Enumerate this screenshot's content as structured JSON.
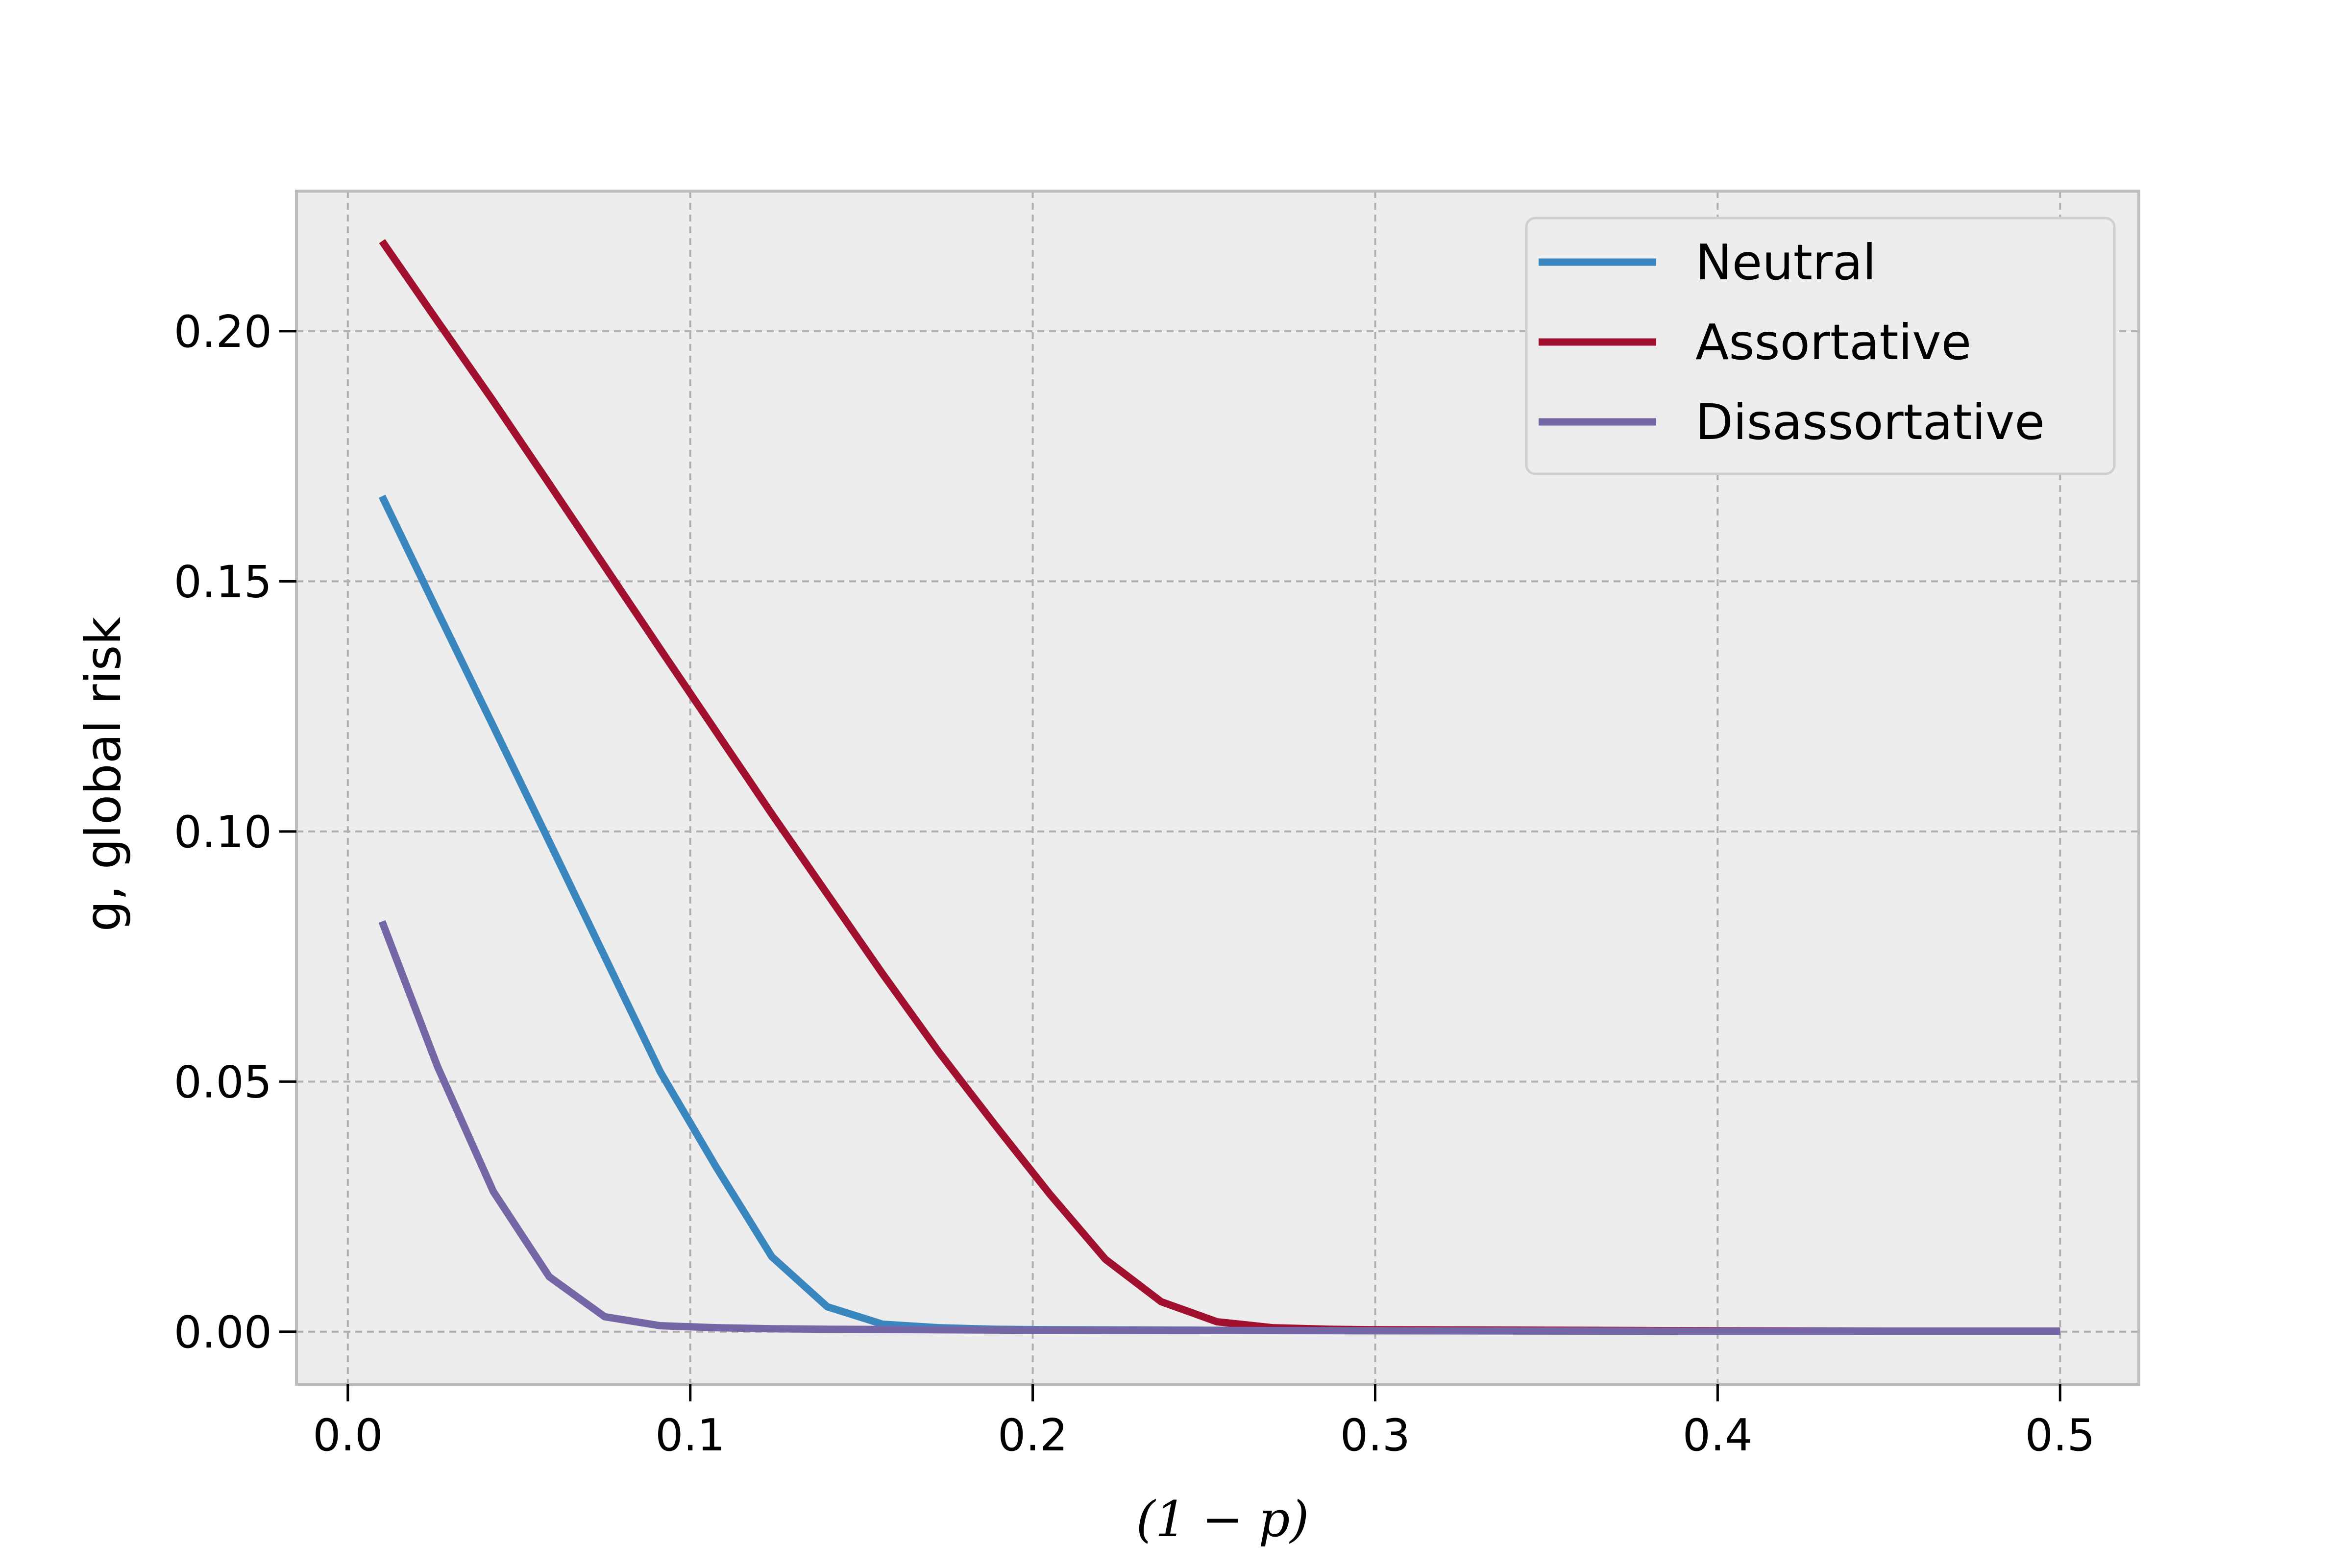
{
  "chart_data": {
    "type": "line",
    "title": "",
    "xlabel": "(1 − p)",
    "ylabel": "g, global risk",
    "xlim": [
      -0.015,
      0.523
    ],
    "ylim": [
      -0.0105,
      0.228
    ],
    "xticks": [
      0.0,
      0.1,
      0.2,
      0.3,
      0.4,
      0.5
    ],
    "xtick_labels": [
      "0.0",
      "0.1",
      "0.2",
      "0.3",
      "0.4",
      "0.5"
    ],
    "yticks": [
      0.0,
      0.05,
      0.1,
      0.15,
      0.2
    ],
    "ytick_labels": [
      "0.00",
      "0.05",
      "0.10",
      "0.15",
      "0.20"
    ],
    "grid": true,
    "legend_position": "top-right",
    "background": "#ededee",
    "series": [
      {
        "name": "Neutral",
        "color": "#3a87bf",
        "x": [
          0.01,
          0.0262,
          0.0425,
          0.0588,
          0.075,
          0.0912,
          0.1075,
          0.1238,
          0.14,
          0.1562,
          0.1725,
          0.1888,
          0.205,
          0.25,
          0.3,
          0.35,
          0.4,
          0.45,
          0.5
        ],
        "y": [
          0.167,
          0.144,
          0.121,
          0.098,
          0.075,
          0.052,
          0.033,
          0.015,
          0.005,
          0.0015,
          0.0008,
          0.0005,
          0.0004,
          0.0003,
          0.0002,
          0.0002,
          0.0001,
          0.0001,
          0.0001
        ]
      },
      {
        "name": "Assortative",
        "color": "#a1102f",
        "x": [
          0.01,
          0.0262,
          0.0425,
          0.0588,
          0.075,
          0.0912,
          0.1075,
          0.1238,
          0.14,
          0.1562,
          0.1725,
          0.1888,
          0.205,
          0.2212,
          0.2375,
          0.2538,
          0.27,
          0.2862,
          0.3,
          0.35,
          0.4,
          0.45,
          0.5
        ],
        "y": [
          0.218,
          0.202,
          0.186,
          0.1695,
          0.153,
          0.1365,
          0.12,
          0.1035,
          0.0875,
          0.0715,
          0.056,
          0.0415,
          0.0275,
          0.0145,
          0.006,
          0.002,
          0.0008,
          0.0005,
          0.0004,
          0.0003,
          0.0002,
          0.0001,
          0.0001
        ]
      },
      {
        "name": "Disassortative",
        "color": "#7566a6",
        "x": [
          0.01,
          0.0262,
          0.0425,
          0.0588,
          0.075,
          0.0912,
          0.1075,
          0.1238,
          0.14,
          0.2,
          0.3,
          0.4,
          0.5
        ],
        "y": [
          0.082,
          0.053,
          0.028,
          0.011,
          0.003,
          0.0012,
          0.0008,
          0.0006,
          0.0005,
          0.0003,
          0.0002,
          0.0001,
          0.0001
        ]
      }
    ]
  }
}
